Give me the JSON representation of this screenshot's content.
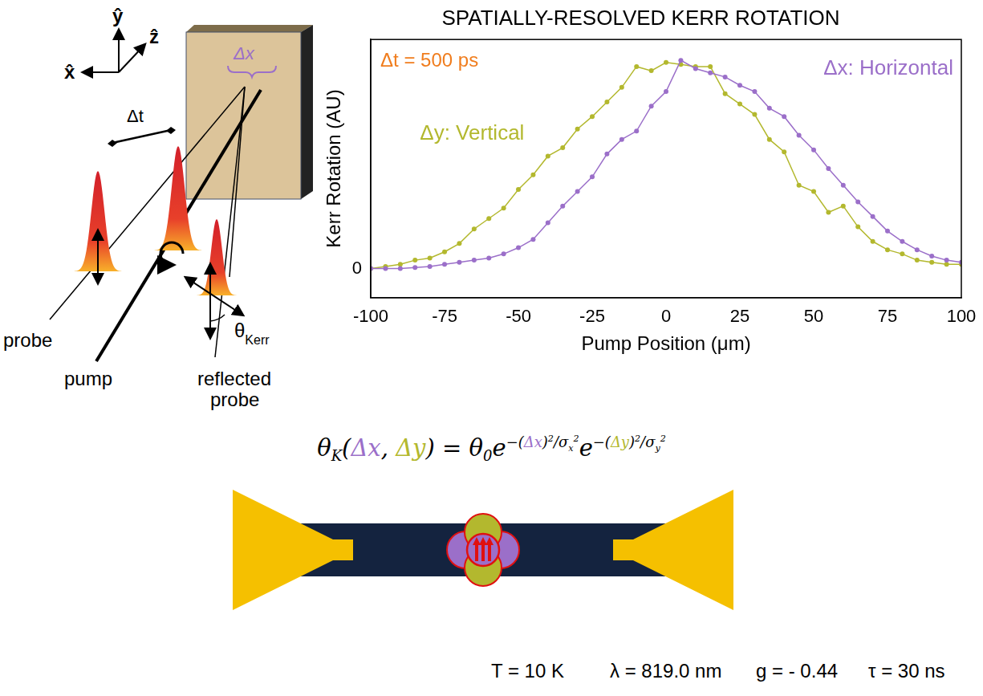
{
  "setup_diagram": {
    "axes": [
      "x̂",
      "ŷ",
      "ẑ"
    ],
    "delay": "Δt",
    "spot": "Δx",
    "probe": "probe",
    "pump": "pump",
    "reflected_probe": [
      "reflected",
      "probe"
    ],
    "kerr_angle": {
      "text": "θ",
      "sub": "Kerr"
    }
  },
  "chart_data": {
    "type": "line",
    "title": "SPATIALLY-RESOLVED KERR ROTATION",
    "x_label": "Pump Position (μm)",
    "y_label": "Kerr Rotation (AU)",
    "annotations": [
      {
        "text": "Δt = 500 ps",
        "color": "#f07d1e"
      }
    ],
    "x": [
      -100,
      -95,
      -90,
      -85,
      -80,
      -75,
      -70,
      -65,
      -60,
      -55,
      -50,
      -45,
      -40,
      -35,
      -30,
      -25,
      -20,
      -15,
      -10,
      -5,
      0,
      5,
      10,
      15,
      20,
      25,
      30,
      35,
      40,
      45,
      50,
      55,
      60,
      65,
      70,
      75,
      80,
      85,
      90,
      95,
      100
    ],
    "series": [
      {
        "name": "Δx: Horizontal",
        "color": "#9b6fc9",
        "marker": "circle",
        "values": [
          0,
          0,
          0,
          0.005,
          0.01,
          0.02,
          0.03,
          0.04,
          0.05,
          0.07,
          0.1,
          0.14,
          0.22,
          0.3,
          0.37,
          0.44,
          0.55,
          0.62,
          0.66,
          0.78,
          0.85,
          1.0,
          0.96,
          0.94,
          0.92,
          0.88,
          0.85,
          0.77,
          0.73,
          0.64,
          0.57,
          0.48,
          0.4,
          0.32,
          0.25,
          0.18,
          0.13,
          0.09,
          0.06,
          0.04,
          0.03
        ]
      },
      {
        "name": "Δy: Vertical",
        "color": "#b3b82e",
        "marker": "circle",
        "values": [
          0,
          0.01,
          0.02,
          0.04,
          0.05,
          0.08,
          0.12,
          0.19,
          0.24,
          0.29,
          0.38,
          0.45,
          0.54,
          0.58,
          0.67,
          0.73,
          0.8,
          0.87,
          0.97,
          0.95,
          0.99,
          0.98,
          0.97,
          0.97,
          0.84,
          0.79,
          0.74,
          0.62,
          0.56,
          0.4,
          0.37,
          0.27,
          0.3,
          0.2,
          0.13,
          0.09,
          0.07,
          0.04,
          0.03,
          0.02,
          0.02
        ]
      }
    ],
    "xlim": [
      -100,
      100
    ],
    "xticks": [
      -100,
      -75,
      -50,
      -25,
      0,
      25,
      50,
      75,
      100
    ],
    "ylim": [
      -0.14,
      1.1
    ],
    "yticks": [
      0
    ],
    "grid": false
  },
  "formula": [
    {
      "text": "θ",
      "sub": "K"
    },
    {
      "text": "("
    },
    {
      "text": "Δx",
      "color": "#9b6fc9"
    },
    {
      "text": ", "
    },
    {
      "text": "Δy",
      "color": "#b3b82e"
    },
    {
      "text": ") = "
    },
    {
      "text": "θ",
      "sub": "0"
    },
    {
      "text": "e",
      "sup": [
        {
          "text": "−("
        },
        {
          "text": "Δx",
          "color": "#9b6fc9"
        },
        {
          "text": ")",
          "sup": [
            {
              "text": "2"
            }
          ]
        },
        {
          "text": "/σ",
          "sub": "x",
          "sup": [
            {
              "text": "2"
            }
          ]
        }
      ]
    },
    {
      "text": "e",
      "sup": [
        {
          "text": "−("
        },
        {
          "text": "Δy",
          "color": "#b3b82e"
        },
        {
          "text": ")",
          "sup": [
            {
              "text": "2"
            }
          ]
        },
        {
          "text": "/σ",
          "sub": "y",
          "sup": [
            {
              "text": "2"
            }
          ]
        }
      ]
    }
  ],
  "parameters": [
    "T = 10 K",
    "λ = 819.0 nm",
    "g = - 0.44",
    "τ = 30 ns"
  ]
}
